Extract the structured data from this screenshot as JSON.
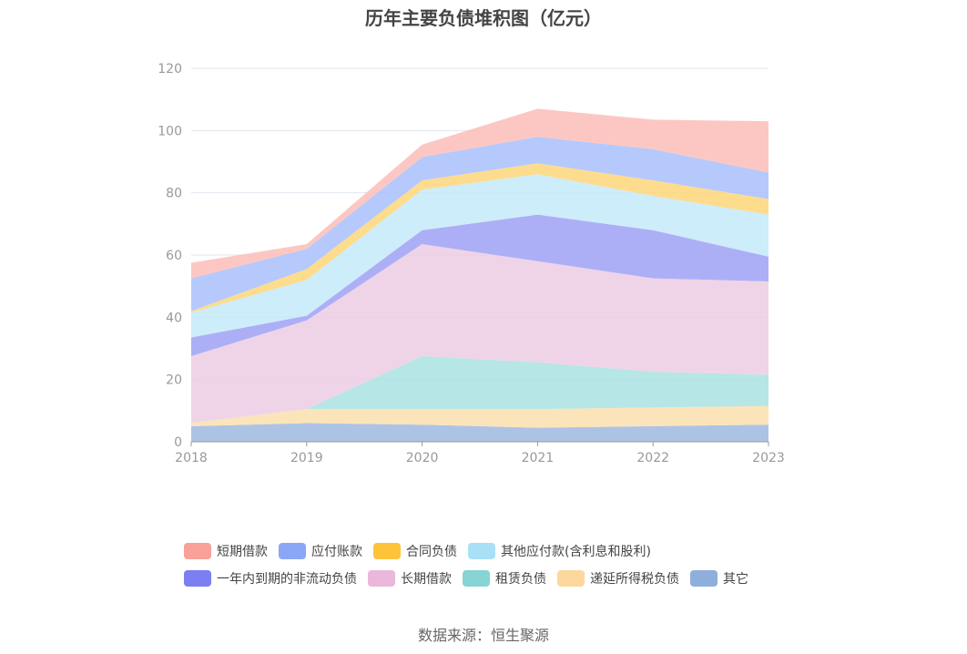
{
  "chart_data": {
    "type": "area",
    "stacked": true,
    "title": "历年主要负债堆积图（亿元）",
    "categories": [
      "2018",
      "2019",
      "2020",
      "2021",
      "2022",
      "2023"
    ],
    "ylim": [
      0,
      120
    ],
    "yticks": [
      "0",
      "20",
      "40",
      "60",
      "80",
      "100",
      "120"
    ],
    "grid": true,
    "legend_position": "bottom",
    "series": [
      {
        "name": "其它",
        "color": "#9fb8e0",
        "values": [
          5.0,
          6.0,
          5.5,
          4.5,
          5.0,
          5.5
        ]
      },
      {
        "name": "递延所得税负债",
        "color": "#fbdfae",
        "values": [
          1.0,
          4.5,
          5.0,
          6.0,
          6.0,
          6.0
        ]
      },
      {
        "name": "租赁负债",
        "color": "#a9e2e2",
        "values": [
          0.0,
          0.0,
          17.0,
          15.0,
          11.5,
          10.0
        ]
      },
      {
        "name": "长期借款",
        "color": "#eccce3",
        "values": [
          21.5,
          28.5,
          36.0,
          32.5,
          30.0,
          30.0
        ]
      },
      {
        "name": "一年内到期的非流动负债",
        "color": "#9fa1f5",
        "values": [
          6.0,
          1.5,
          4.5,
          15.0,
          15.5,
          8.0
        ]
      },
      {
        "name": "其他应付款(含利息和股利)",
        "color": "#c4eaf9",
        "values": [
          8.0,
          11.5,
          13.0,
          13.0,
          11.0,
          13.5
        ]
      },
      {
        "name": "合同负债",
        "color": "#fdd67a",
        "values": [
          0.5,
          3.5,
          3.0,
          3.5,
          5.0,
          5.0
        ]
      },
      {
        "name": "应付账款",
        "color": "#a9bffb",
        "values": [
          10.5,
          6.5,
          7.5,
          8.5,
          10.0,
          8.5
        ]
      },
      {
        "name": "短期借款",
        "color": "#fbbdb8",
        "values": [
          5.0,
          1.5,
          4.0,
          9.0,
          9.5,
          16.5
        ]
      }
    ],
    "legend": [
      {
        "name": "短期借款",
        "color": "#f9a099"
      },
      {
        "name": "应付账款",
        "color": "#8aa7f7"
      },
      {
        "name": "合同负债",
        "color": "#fdc43a"
      },
      {
        "name": "其他应付款(含利息和股利)",
        "color": "#a8e1f7"
      },
      {
        "name": "一年内到期的非流动负债",
        "color": "#7b7ff1"
      },
      {
        "name": "长期借款",
        "color": "#eab8da"
      },
      {
        "name": "租赁负债",
        "color": "#86d4d4"
      },
      {
        "name": "递延所得税负债",
        "color": "#fcd89c"
      },
      {
        "name": "其它",
        "color": "#8eaedb"
      }
    ]
  },
  "source": "数据来源：恒生聚源"
}
